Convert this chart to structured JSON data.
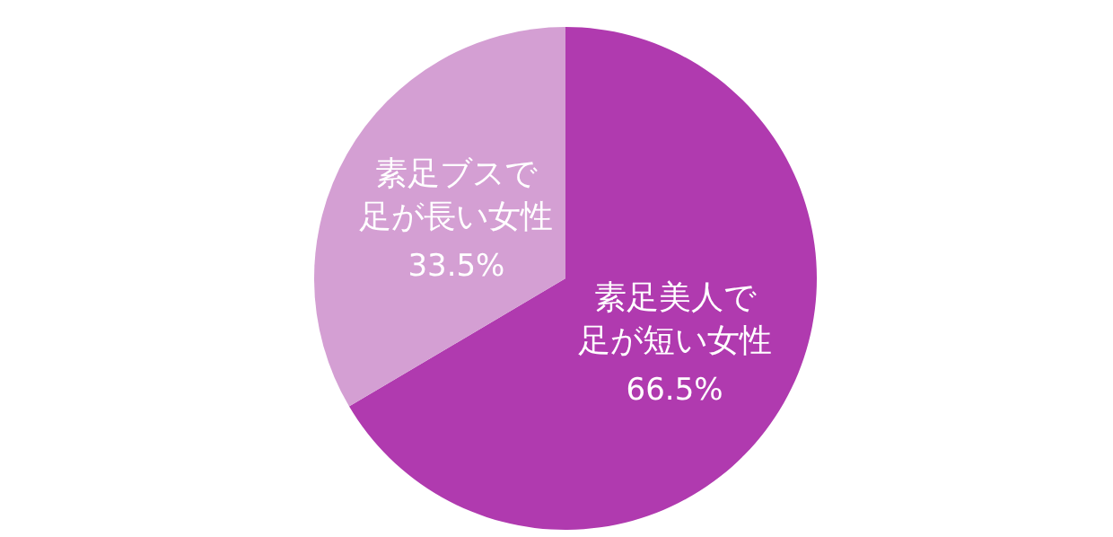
{
  "chart_data": {
    "type": "pie",
    "categories": [
      "素足美人で足が短い女性",
      "素足ブスで足が長い女性"
    ],
    "values": [
      66.5,
      33.5
    ],
    "colors": [
      "#b03aaf",
      "#d49fd3"
    ],
    "value_labels": [
      "66.5%",
      "33.5%"
    ],
    "legend": false
  }
}
